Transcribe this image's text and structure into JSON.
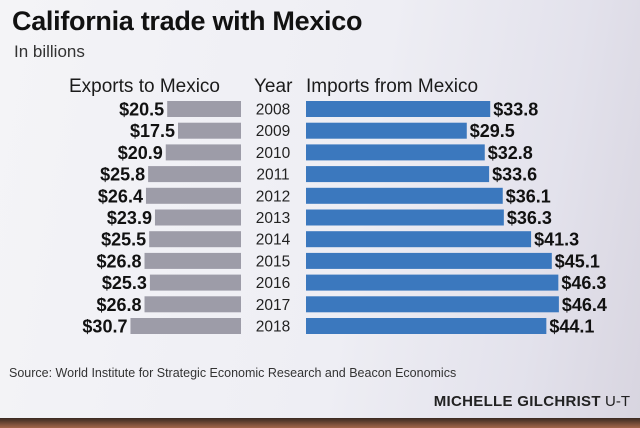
{
  "title": "California trade with Mexico",
  "subtitle": "In billions",
  "headers": {
    "exports": "Exports to Mexico",
    "year": "Year",
    "imports": "Imports from Mexico"
  },
  "colors": {
    "exports_bar": "#9d9ca8",
    "imports_bar": "#3b78be"
  },
  "chart_data": {
    "type": "bar",
    "orientation": "horizontal",
    "layout": "back-to-back",
    "title": "California trade with Mexico",
    "subtitle": "In billions",
    "unit": "$ billions",
    "categories": [
      "2008",
      "2009",
      "2010",
      "2011",
      "2012",
      "2013",
      "2014",
      "2015",
      "2016",
      "2017",
      "2018"
    ],
    "series": [
      {
        "name": "Exports to Mexico",
        "values": [
          20.5,
          17.5,
          20.9,
          25.8,
          26.4,
          23.9,
          25.5,
          26.8,
          25.3,
          26.8,
          30.7
        ],
        "labels": [
          "$20.5",
          "$17.5",
          "$20.9",
          "$25.8",
          "$26.4",
          "$23.9",
          "$25.5",
          "$26.8",
          "$25.3",
          "$26.8",
          "$30.7"
        ]
      },
      {
        "name": "Imports from Mexico",
        "values": [
          33.8,
          29.5,
          32.8,
          33.6,
          36.1,
          36.3,
          41.3,
          45.1,
          46.3,
          46.4,
          44.1
        ],
        "labels": [
          "$33.8",
          "$29.5",
          "$32.8",
          "$33.6",
          "$36.1",
          "$36.3",
          "$41.3",
          "$45.1",
          "$46.3",
          "$46.4",
          "$44.1"
        ]
      }
    ],
    "grid": false,
    "legend": "none"
  },
  "source": "Source: World Institute for Strategic Economic Research and Beacon Economics",
  "credit": {
    "author": "MICHELLE GILCHRIST",
    "org": "U-T"
  }
}
